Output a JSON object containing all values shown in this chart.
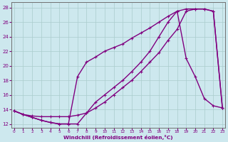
{
  "xlabel": "Windchill (Refroidissement éolien,°C)",
  "background_color": "#cde8ee",
  "line_color": "#800080",
  "grid_color": "#aacccc",
  "line1_x": [
    0,
    1,
    2,
    3,
    4,
    5,
    6,
    7,
    8,
    9,
    10,
    11,
    12,
    13,
    14,
    15,
    16,
    17,
    18,
    19,
    20,
    21,
    22,
    23
  ],
  "line1_y": [
    13.8,
    13.3,
    13.1,
    13.0,
    13.0,
    13.0,
    13.0,
    13.2,
    13.5,
    14.2,
    15.0,
    16.0,
    17.0,
    18.0,
    19.2,
    20.5,
    21.8,
    23.5,
    25.0,
    27.5,
    27.8,
    27.8,
    27.5,
    14.2
  ],
  "line2_x": [
    0,
    1,
    2,
    3,
    4,
    5,
    6,
    7,
    8,
    9,
    10,
    11,
    12,
    13,
    14,
    15,
    16,
    17,
    18,
    19,
    20,
    21,
    22,
    23
  ],
  "line2_y": [
    13.8,
    13.3,
    12.9,
    12.5,
    12.2,
    12.0,
    12.0,
    18.5,
    20.5,
    21.2,
    22.0,
    22.5,
    23.0,
    23.8,
    24.5,
    25.2,
    26.0,
    26.8,
    27.5,
    21.0,
    18.5,
    15.5,
    14.5,
    14.2
  ],
  "line3_x": [
    0,
    1,
    2,
    3,
    4,
    5,
    6,
    7,
    8,
    9,
    10,
    11,
    12,
    13,
    14,
    15,
    16,
    17,
    18,
    19,
    20,
    21,
    22,
    23
  ],
  "line3_y": [
    13.8,
    13.3,
    12.9,
    12.5,
    12.2,
    12.0,
    12.0,
    12.0,
    13.5,
    15.0,
    16.0,
    17.0,
    18.0,
    19.2,
    20.5,
    22.0,
    24.0,
    26.0,
    27.5,
    27.8,
    27.8,
    27.8,
    27.5,
    14.2
  ],
  "xlim": [
    -0.3,
    23.3
  ],
  "ylim": [
    11.5,
    28.7
  ],
  "xticks": [
    0,
    1,
    2,
    3,
    4,
    5,
    6,
    7,
    8,
    9,
    10,
    11,
    12,
    13,
    14,
    15,
    16,
    17,
    18,
    19,
    20,
    21,
    22,
    23
  ],
  "yticks": [
    12,
    14,
    16,
    18,
    20,
    22,
    24,
    26,
    28
  ],
  "line_width": 1.0,
  "marker_size": 3.5
}
